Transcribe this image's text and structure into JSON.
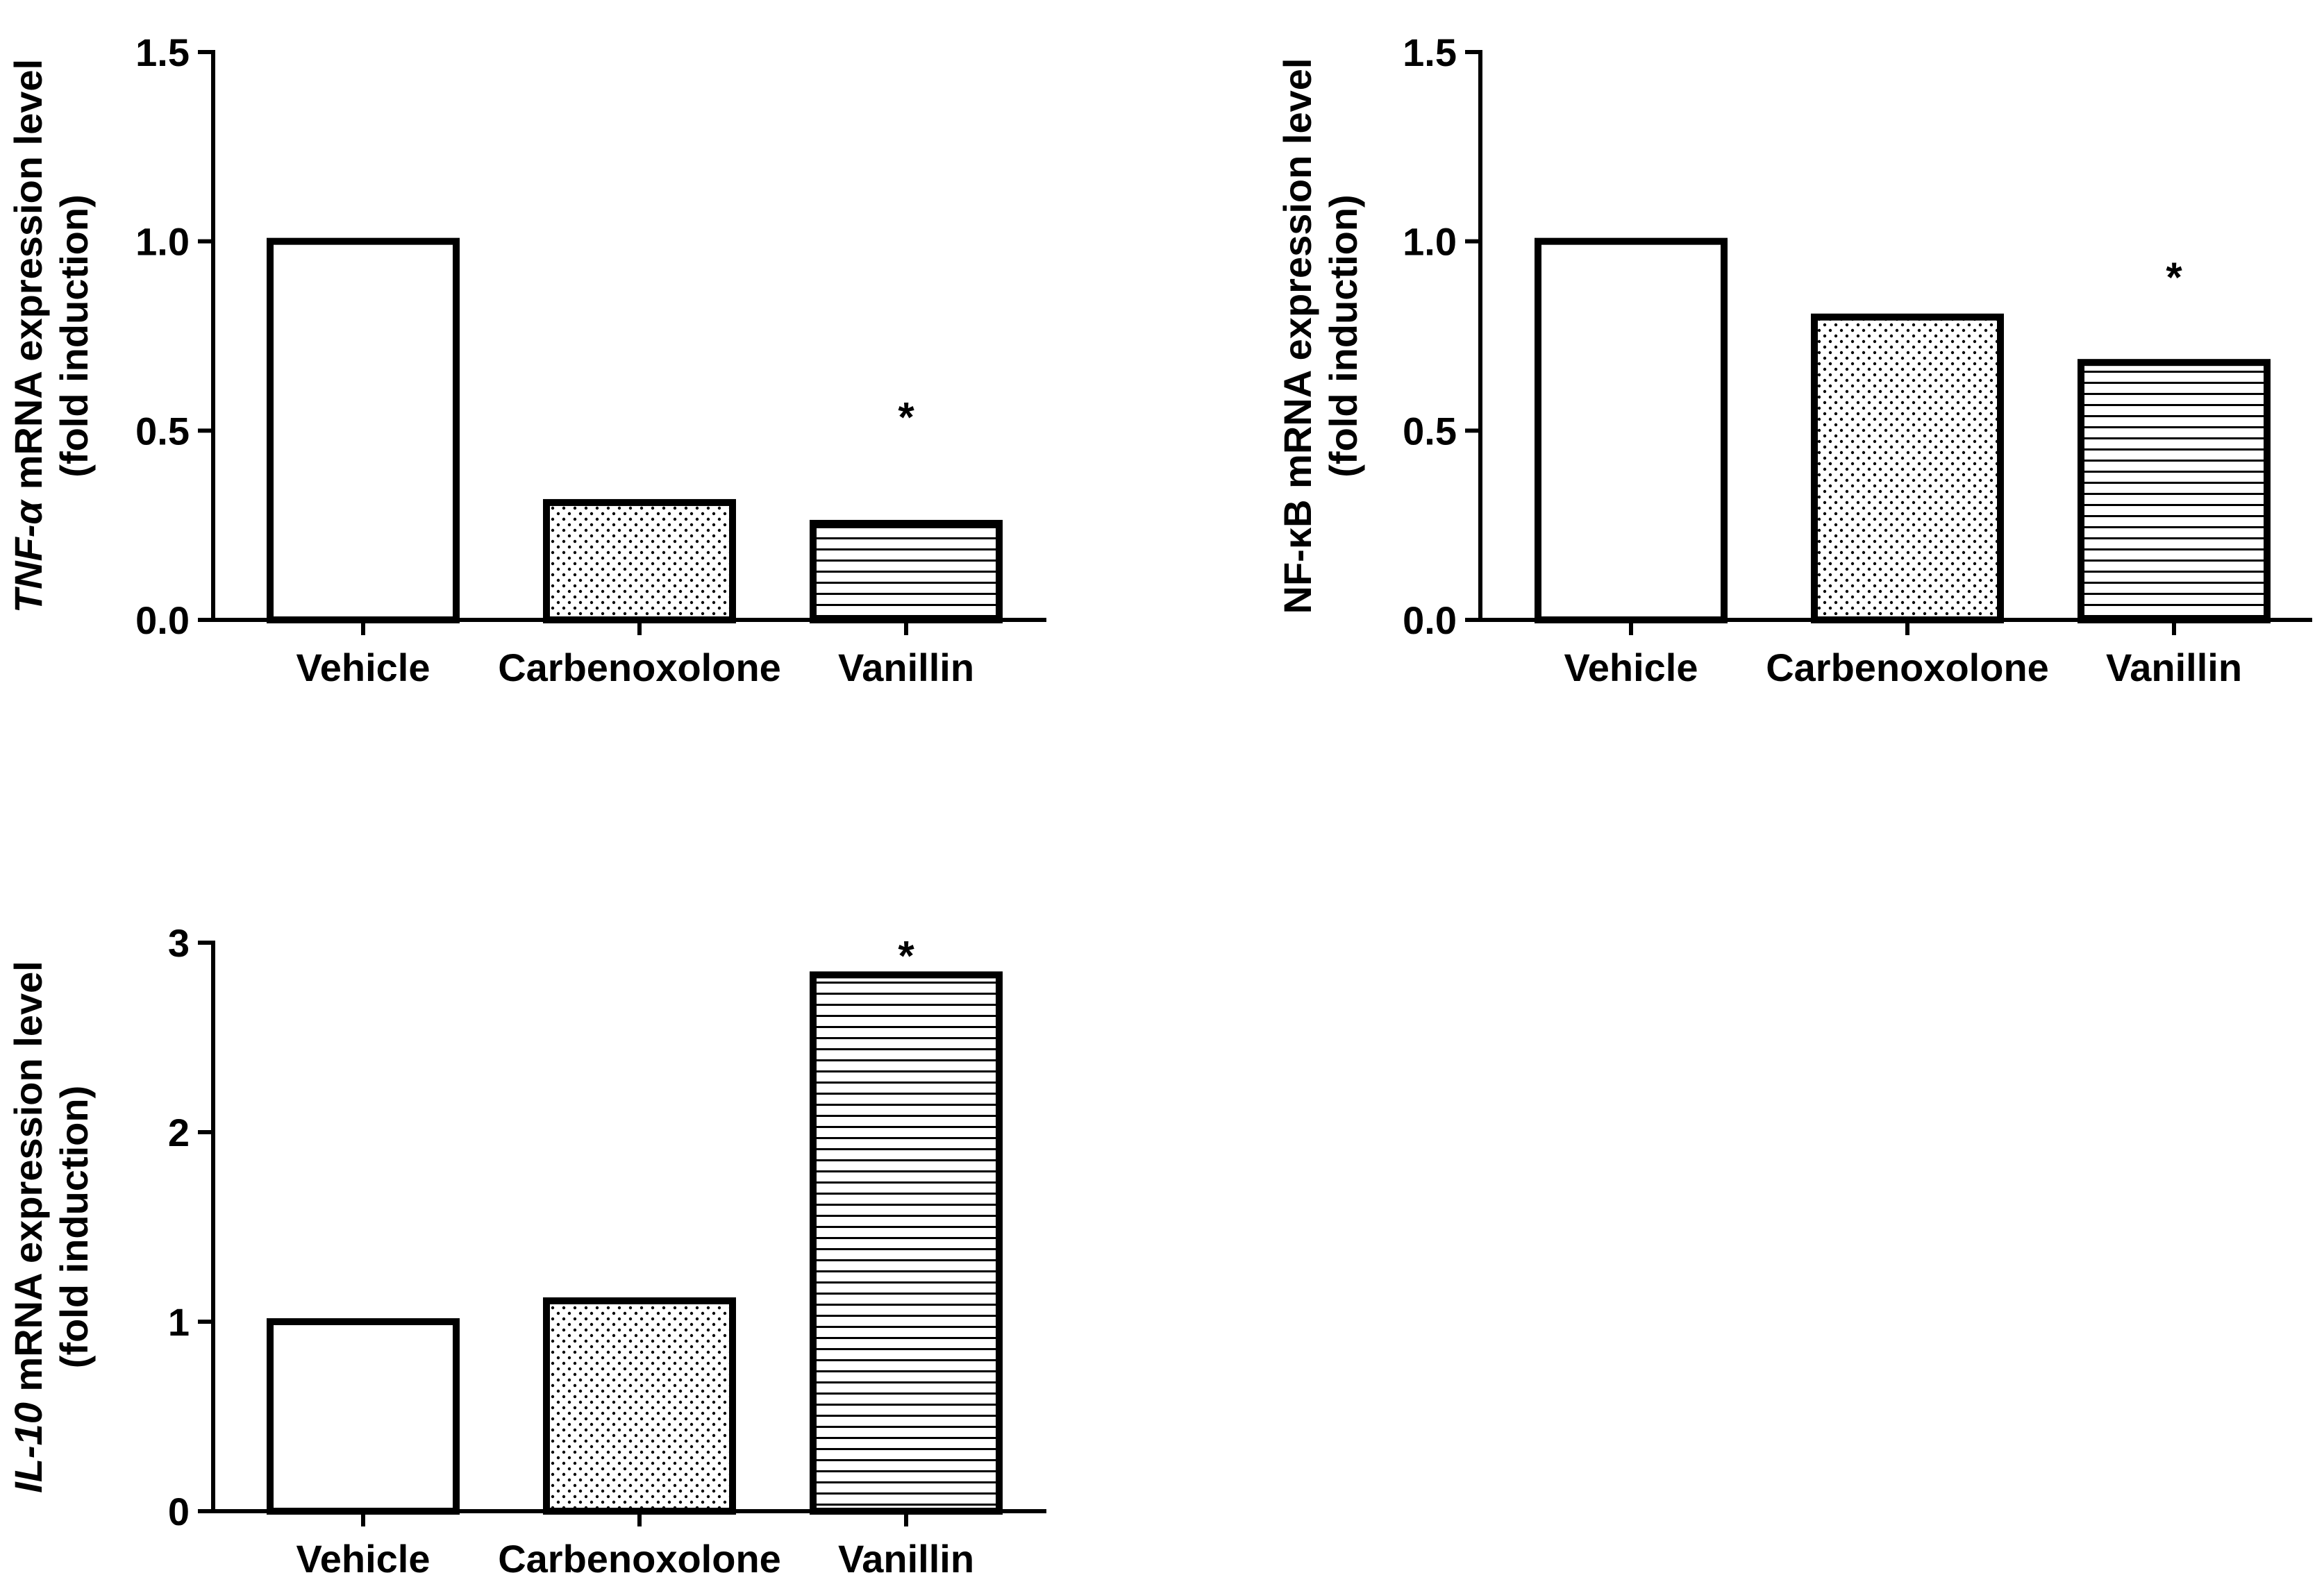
{
  "chart_data": [
    {
      "type": "bar",
      "panel": "tnf-alpha",
      "title": "",
      "xlabel": "",
      "ylabel_lines": [
        "TNF-α mRNA expression level",
        "(fold induction)"
      ],
      "ylabel_gene": "TNF-α",
      "ylabel_rest": " mRNA expression level",
      "ylabel_line2": "(fold induction)",
      "ylim": [
        0,
        1.5
      ],
      "yticks": [
        "0.0",
        "0.5",
        "1.0",
        "1.5"
      ],
      "categories": [
        "Vehicle",
        "Carbenoxolone",
        "Vanillin"
      ],
      "values": [
        1.0,
        0.31,
        0.255
      ],
      "patterns": [
        "none",
        "dots",
        "hlines"
      ],
      "significance": [
        "",
        "",
        "*"
      ],
      "sig_y": [
        null,
        null,
        0.56
      ]
    },
    {
      "type": "bar",
      "panel": "nf-kb",
      "title": "",
      "xlabel": "",
      "ylabel_lines": [
        "NF-κB mRNA expression level",
        "(fold induction)"
      ],
      "ylabel_gene": "NF-κB",
      "ylabel_rest": " mRNA expression level",
      "ylabel_line2": "(fold induction)",
      "ylim": [
        0,
        1.5
      ],
      "yticks": [
        "0.0",
        "0.5",
        "1.0",
        "1.5"
      ],
      "categories": [
        "Vehicle",
        "Carbenoxolone",
        "Vanillin"
      ],
      "values": [
        1.0,
        0.8,
        0.68
      ],
      "patterns": [
        "none",
        "dots",
        "hlines"
      ],
      "significance": [
        "",
        "",
        "*"
      ],
      "sig_y": [
        null,
        null,
        0.93
      ]
    },
    {
      "type": "bar",
      "panel": "il-10",
      "title": "",
      "xlabel": "",
      "ylabel_lines": [
        "IL-10 mRNA expression level",
        "(fold induction)"
      ],
      "ylabel_gene": "IL-10",
      "ylabel_rest": " mRNA expression level",
      "ylabel_line2": "(fold induction)",
      "ylim": [
        0,
        3
      ],
      "yticks": [
        "0",
        "1",
        "2",
        "3"
      ],
      "categories": [
        "Vehicle",
        "Carbenoxolone",
        "Vanillin"
      ],
      "values": [
        1.0,
        1.11,
        2.83
      ],
      "patterns": [
        "none",
        "dots",
        "hlines"
      ],
      "significance": [
        "",
        "",
        "*"
      ],
      "sig_y": [
        null,
        null,
        2.98
      ]
    }
  ]
}
